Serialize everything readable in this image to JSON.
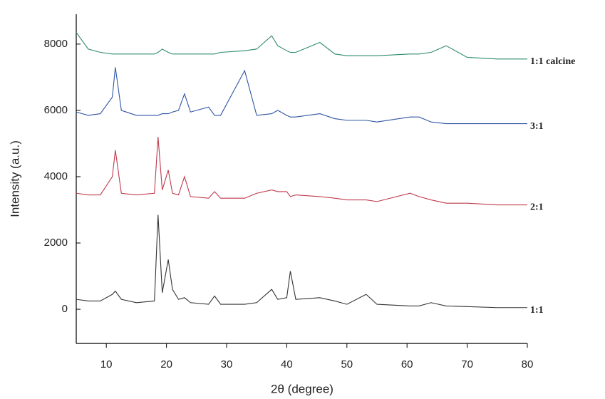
{
  "chart_data": {
    "type": "line",
    "x_label": "2θ (degree)",
    "y_label": "Intensity (a.u.)",
    "xlim": [
      5,
      80
    ],
    "xticks": [
      10,
      20,
      30,
      40,
      50,
      60,
      70,
      80
    ],
    "ylim": [
      -1030,
      8900
    ],
    "yticks": [
      0,
      2000,
      4000,
      6000,
      8000
    ],
    "x": [
      5,
      7,
      9,
      11,
      11.5,
      12.5,
      15,
      18,
      18.6,
      19.3,
      20.3,
      21,
      22,
      23,
      24,
      27,
      28,
      29,
      33,
      35,
      37.5,
      38.5,
      40,
      40.6,
      41.5,
      45.5,
      48,
      50,
      53.2,
      55,
      60.5,
      62,
      64,
      66.5,
      70,
      75,
      80
    ],
    "series": [
      {
        "name": "1:1",
        "color": "#333333",
        "values": [
          300,
          250,
          250,
          450,
          550,
          300,
          200,
          250,
          2850,
          500,
          1500,
          600,
          300,
          350,
          200,
          150,
          400,
          150,
          150,
          200,
          600,
          300,
          350,
          1150,
          300,
          350,
          250,
          150,
          450,
          150,
          100,
          100,
          200,
          100,
          80,
          50,
          50
        ]
      },
      {
        "name": "2:1",
        "color": "#c0394b",
        "values": [
          3500,
          3450,
          3450,
          4000,
          4800,
          3500,
          3450,
          3500,
          5200,
          3600,
          4200,
          3500,
          3450,
          4000,
          3400,
          3350,
          3550,
          3350,
          3350,
          3500,
          3600,
          3550,
          3550,
          3400,
          3450,
          3400,
          3350,
          3300,
          3300,
          3250,
          3500,
          3400,
          3300,
          3200,
          3200,
          3150,
          3150
        ]
      },
      {
        "name": "3:1",
        "color": "#2f55a4",
        "values": [
          5950,
          5850,
          5900,
          6400,
          7300,
          6000,
          5850,
          5850,
          5850,
          5900,
          5900,
          5950,
          6000,
          6500,
          5950,
          6100,
          5850,
          5850,
          7200,
          5850,
          5900,
          6000,
          5850,
          5800,
          5800,
          5900,
          5750,
          5700,
          5700,
          5650,
          5800,
          5800,
          5650,
          5600,
          5600,
          5600,
          5600
        ]
      },
      {
        "name": "1:1 calcine",
        "color": "#2e8b6a",
        "values": [
          8350,
          7850,
          7750,
          7700,
          7700,
          7700,
          7700,
          7700,
          7750,
          7850,
          7750,
          7700,
          7700,
          7700,
          7700,
          7700,
          7700,
          7750,
          7800,
          7850,
          8250,
          7950,
          7800,
          7750,
          7750,
          8050,
          7700,
          7650,
          7650,
          7650,
          7700,
          7700,
          7750,
          7950,
          7600,
          7550,
          7550
        ]
      }
    ]
  }
}
